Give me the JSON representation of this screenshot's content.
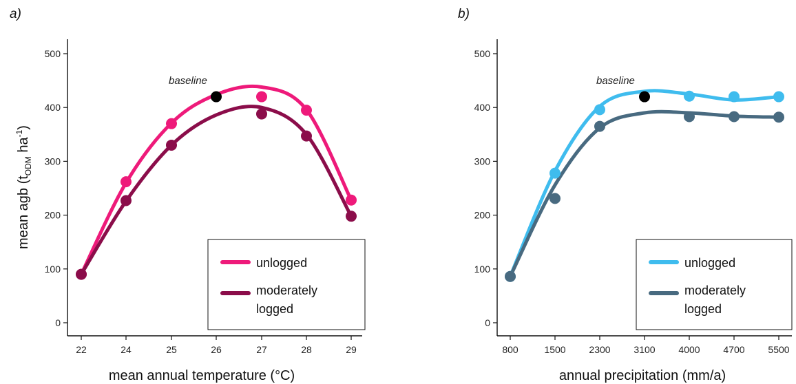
{
  "chart_data": [
    {
      "type": "scatter",
      "panel_label": "a)",
      "xlabel": "mean annual temperature (°C)",
      "ylabel": "mean agb (t",
      "ylabel_sub": "ODM",
      "ylabel_unit": " ha",
      "ylabel_sup": "-1",
      "ylabel_close": ")",
      "annotation": "baseline",
      "categories": [
        "22",
        "24",
        "25",
        "26",
        "27",
        "28",
        "29"
      ],
      "yticks": [
        "0",
        "100",
        "200",
        "300",
        "400",
        "500"
      ],
      "ylim": [
        0,
        500
      ],
      "baseline": {
        "category": "26",
        "value": 420,
        "color": "#000000"
      },
      "series": [
        {
          "name": "unlogged",
          "color": "#ee1a7a",
          "values": [
            90,
            262,
            370,
            null,
            420,
            395,
            228
          ],
          "fit": [
            90,
            260,
            371,
            424,
            438,
            396,
            228
          ]
        },
        {
          "name": "moderately logged",
          "color": "#8b0d4a",
          "values": [
            90,
            227,
            330,
            null,
            388,
            347,
            198
          ],
          "fit": [
            90,
            226,
            330,
            386,
            400,
            350,
            198
          ]
        }
      ],
      "legend": {
        "position": "bottom-right"
      }
    },
    {
      "type": "scatter",
      "panel_label": "b)",
      "xlabel": "annual precipitation (mm/a)",
      "ylabel": "",
      "annotation": "baseline",
      "categories": [
        "800",
        "1500",
        "2300",
        "3100",
        "4000",
        "4700",
        "5500"
      ],
      "yticks": [
        "0",
        "100",
        "200",
        "300",
        "400",
        "500"
      ],
      "ylim": [
        0,
        500
      ],
      "baseline": {
        "category": "3100",
        "value": 420,
        "color": "#000000"
      },
      "series": [
        {
          "name": "unlogged",
          "color": "#3fbcee",
          "values": [
            86,
            278,
            396,
            null,
            421,
            420,
            420
          ],
          "fit": [
            86,
            282,
            402,
            430,
            425,
            414,
            420
          ]
        },
        {
          "name": "moderately logged",
          "color": "#486a80",
          "values": [
            86,
            231,
            365,
            null,
            383,
            383,
            382
          ],
          "fit": [
            86,
            256,
            362,
            390,
            390,
            384,
            382
          ]
        }
      ],
      "legend": {
        "position": "bottom-right"
      }
    }
  ]
}
